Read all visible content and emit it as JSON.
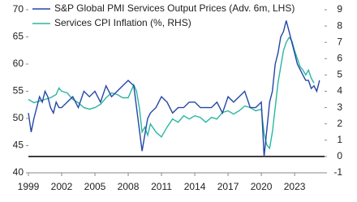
{
  "chart_data": {
    "type": "line",
    "xlim": [
      1999,
      2025.7
    ],
    "xticks": [
      1999,
      2002,
      2005,
      2008,
      2011,
      2014,
      2017,
      2020,
      2023
    ],
    "ylim": [
      40,
      70
    ],
    "yticks": [
      40,
      45,
      50,
      55,
      60,
      65,
      70
    ],
    "y2lim": [
      -1,
      9
    ],
    "y2ticks": [
      -1,
      0,
      1,
      2,
      3,
      4,
      5,
      6,
      7,
      8,
      9
    ],
    "hline": {
      "axis": "y2",
      "value": 0,
      "color": "#000000"
    },
    "legend": "top-left",
    "series": [
      {
        "name": "S&P Global PMI Services Output Prices (Adv. 6m, LHS)",
        "color": "#2446a6",
        "axis": "y",
        "x": [
          1999,
          1999.25,
          1999.5,
          1999.75,
          2000,
          2000.25,
          2000.5,
          2000.75,
          2001,
          2001.25,
          2001.5,
          2001.75,
          2002,
          2002.5,
          2003,
          2003.5,
          2004,
          2004.5,
          2005,
          2005.5,
          2006,
          2006.5,
          2007,
          2007.5,
          2008,
          2008.5,
          2008.75,
          2009,
          2009.25,
          2009.5,
          2009.75,
          2010,
          2010.5,
          2011,
          2011.5,
          2012,
          2012.5,
          2013,
          2013.5,
          2014,
          2014.5,
          2015,
          2015.5,
          2016,
          2016.5,
          2017,
          2017.5,
          2018,
          2018.5,
          2019,
          2019.5,
          2020,
          2020.25,
          2020.5,
          2020.75,
          2021,
          2021.25,
          2021.5,
          2021.75,
          2022,
          2022.25,
          2022.5,
          2022.75,
          2023,
          2023.25,
          2023.5,
          2023.75,
          2024,
          2024.25,
          2024.5,
          2024.75,
          2025,
          2025.25
        ],
        "values": [
          51,
          47.5,
          50,
          52,
          54,
          53,
          55,
          54,
          52,
          51,
          53,
          52,
          52,
          53,
          54,
          52,
          55,
          54,
          55,
          53,
          56,
          54,
          55,
          56,
          57,
          56,
          52,
          48,
          44,
          47,
          50,
          51,
          52,
          54,
          53,
          51,
          52,
          52,
          53,
          53,
          52,
          52,
          52,
          53,
          51,
          54,
          53,
          54,
          55,
          52,
          52,
          53,
          43,
          48,
          53,
          55,
          60,
          62,
          65,
          66,
          68,
          66,
          64,
          62,
          60,
          59,
          58,
          57,
          57,
          55.5,
          56,
          55,
          57
        ]
      },
      {
        "name": "Services CPI Inflation (%, RHS)",
        "color": "#2bb5a2",
        "axis": "y2",
        "x": [
          1999,
          1999.5,
          2000,
          2000.5,
          2001,
          2001.5,
          2001.75,
          2002,
          2002.5,
          2003,
          2003.5,
          2004,
          2004.5,
          2005,
          2005.5,
          2006,
          2006.5,
          2007,
          2007.5,
          2008,
          2008.5,
          2008.75,
          2009,
          2009.25,
          2009.5,
          2009.75,
          2010,
          2010.5,
          2011,
          2011.5,
          2012,
          2012.5,
          2013,
          2013.5,
          2014,
          2014.5,
          2015,
          2015.5,
          2016,
          2016.5,
          2017,
          2017.5,
          2018,
          2018.5,
          2019,
          2019.5,
          2020,
          2020.25,
          2020.5,
          2020.75,
          2021,
          2021.25,
          2021.5,
          2021.75,
          2022,
          2022.25,
          2022.5,
          2022.75,
          2023,
          2023.25,
          2023.5,
          2023.75,
          2024,
          2024.25,
          2024.5,
          2024.75
        ],
        "values": [
          3.5,
          3.3,
          3.4,
          3.5,
          3.6,
          3.8,
          4.2,
          4.0,
          3.9,
          3.5,
          3.3,
          3.0,
          2.9,
          3.0,
          3.2,
          3.6,
          3.9,
          3.8,
          3.6,
          3.6,
          4.4,
          4.0,
          3.0,
          1.5,
          1.8,
          1.3,
          2.0,
          1.5,
          1.2,
          1.8,
          2.3,
          2.1,
          2.5,
          2.3,
          2.5,
          2.4,
          2.1,
          2.4,
          2.3,
          2.7,
          2.8,
          2.6,
          2.8,
          3.1,
          3.0,
          2.8,
          2.9,
          1.4,
          0.7,
          0.5,
          1.5,
          3.0,
          4.5,
          5.5,
          6.5,
          7.0,
          7.3,
          7.1,
          6.5,
          6.0,
          5.5,
          5.3,
          5.0,
          5.3,
          4.8,
          4.5
        ]
      }
    ]
  }
}
